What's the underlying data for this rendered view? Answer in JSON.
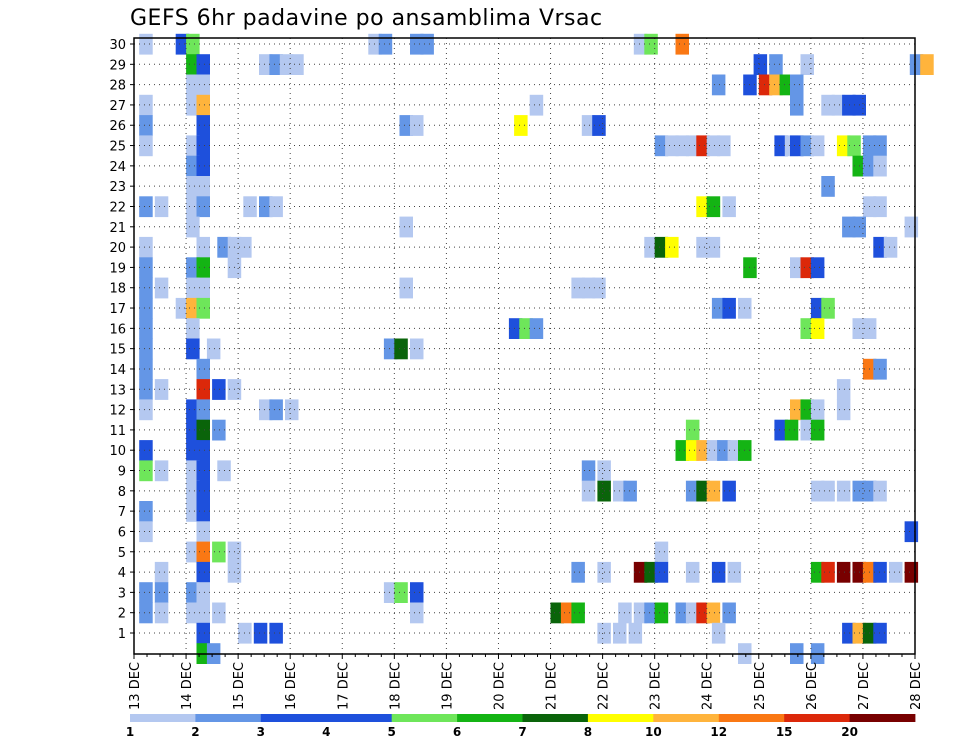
{
  "chart_data": {
    "type": "heatmap",
    "title": "GEFS 6hr padavine po ansamblima Vrsac",
    "y_categories": [
      1,
      2,
      3,
      4,
      5,
      6,
      7,
      8,
      9,
      10,
      11,
      12,
      13,
      14,
      15,
      16,
      17,
      18,
      19,
      20,
      21,
      22,
      23,
      24,
      25,
      26,
      27,
      28,
      29,
      30
    ],
    "x_labels": [
      "13 DEC",
      "14 DEC",
      "15 DEC",
      "16 DEC",
      "17 DEC",
      "18 DEC",
      "19 DEC",
      "20 DEC",
      "21 DEC",
      "22 DEC",
      "23 DEC",
      "24 DEC",
      "25 DEC",
      "26 DEC",
      "27 DEC",
      "28 DEC"
    ],
    "x_unit": "6-hourly steps (4 per day)",
    "legend": {
      "labels": [
        "1",
        "2",
        "3",
        "4",
        "5",
        "6",
        "7",
        "8",
        "10",
        "12",
        "15",
        "20"
      ],
      "colors": [
        "#b4c8f0",
        "#6496e6",
        "#1e50dc",
        "#1e50dc",
        "#6ee65a",
        "#14b414",
        "#0a640a",
        "#ffff00",
        "#ffb43c",
        "#fa7814",
        "#dc280a",
        "#780000"
      ]
    },
    "colors": {
      "c1": "#b4c8f0",
      "c2": "#6496e6",
      "c3": "#1e50dc",
      "c5": "#6ee65a",
      "c6": "#14b414",
      "c7": "#0a640a",
      "c8": "#ffff00",
      "c10": "#ffb43c",
      "c12": "#fa7814",
      "c15": "#dc280a",
      "c20": "#780000"
    },
    "cells": [
      [
        30,
        0.1,
        1
      ],
      [
        30,
        0.8,
        3
      ],
      [
        30,
        1.0,
        5
      ],
      [
        30,
        4.5,
        1
      ],
      [
        30,
        4.7,
        2
      ],
      [
        30,
        5.3,
        2
      ],
      [
        30,
        5.5,
        2
      ],
      [
        30,
        9.6,
        1
      ],
      [
        30,
        9.8,
        5
      ],
      [
        30,
        10.4,
        12
      ],
      [
        29,
        1.0,
        6
      ],
      [
        29,
        1.2,
        3
      ],
      [
        29,
        2.4,
        1
      ],
      [
        29,
        2.6,
        2
      ],
      [
        29,
        2.8,
        1
      ],
      [
        29,
        3.0,
        1
      ],
      [
        29,
        11.9,
        3
      ],
      [
        29,
        12.2,
        2
      ],
      [
        29,
        12.8,
        1
      ],
      [
        29,
        14.9,
        2
      ],
      [
        29,
        15.1,
        10
      ],
      [
        28,
        1.0,
        1
      ],
      [
        28,
        1.2,
        1
      ],
      [
        28,
        11.1,
        2
      ],
      [
        28,
        11.7,
        3
      ],
      [
        28,
        12.0,
        15
      ],
      [
        28,
        12.2,
        10
      ],
      [
        28,
        12.4,
        6
      ],
      [
        28,
        12.6,
        2
      ],
      [
        27,
        0.1,
        1
      ],
      [
        27,
        1.0,
        1
      ],
      [
        27,
        1.2,
        10
      ],
      [
        27,
        7.6,
        1
      ],
      [
        27,
        12.6,
        2
      ],
      [
        27,
        13.2,
        1
      ],
      [
        27,
        13.4,
        1
      ],
      [
        27,
        13.6,
        3
      ],
      [
        27,
        13.8,
        3
      ],
      [
        26,
        0.1,
        2
      ],
      [
        26,
        1.2,
        3
      ],
      [
        26,
        5.1,
        2
      ],
      [
        26,
        5.3,
        1
      ],
      [
        26,
        7.3,
        8
      ],
      [
        26,
        8.6,
        1
      ],
      [
        26,
        8.8,
        3
      ],
      [
        25,
        0.1,
        1
      ],
      [
        25,
        1.0,
        1
      ],
      [
        25,
        1.2,
        3
      ],
      [
        25,
        10.0,
        2
      ],
      [
        25,
        10.2,
        1
      ],
      [
        25,
        10.4,
        1
      ],
      [
        25,
        10.6,
        1
      ],
      [
        25,
        10.8,
        15
      ],
      [
        25,
        11.0,
        1
      ],
      [
        25,
        11.2,
        1
      ],
      [
        25,
        12.3,
        3
      ],
      [
        25,
        12.5,
        1
      ],
      [
        25,
        12.6,
        3
      ],
      [
        25,
        12.8,
        2
      ],
      [
        25,
        13.0,
        1
      ],
      [
        25,
        13.5,
        8
      ],
      [
        25,
        13.7,
        5
      ],
      [
        25,
        14.0,
        2
      ],
      [
        25,
        14.2,
        2
      ],
      [
        24,
        1.0,
        2
      ],
      [
        24,
        1.2,
        3
      ],
      [
        24,
        13.8,
        6
      ],
      [
        24,
        14.0,
        2
      ],
      [
        24,
        14.2,
        1
      ],
      [
        23,
        1.0,
        1
      ],
      [
        23,
        1.2,
        1
      ],
      [
        23,
        13.2,
        2
      ],
      [
        22,
        0.1,
        2
      ],
      [
        22,
        0.4,
        1
      ],
      [
        22,
        1.0,
        1
      ],
      [
        22,
        1.2,
        2
      ],
      [
        22,
        2.1,
        1
      ],
      [
        22,
        2.4,
        2
      ],
      [
        22,
        2.6,
        1
      ],
      [
        22,
        10.8,
        8
      ],
      [
        22,
        11.0,
        6
      ],
      [
        22,
        11.3,
        1
      ],
      [
        22,
        14.0,
        1
      ],
      [
        22,
        14.2,
        1
      ],
      [
        21,
        1.0,
        1
      ],
      [
        21,
        5.1,
        1
      ],
      [
        21,
        13.6,
        2
      ],
      [
        21,
        13.8,
        2
      ],
      [
        21,
        14.8,
        1
      ],
      [
        20,
        0.1,
        1
      ],
      [
        20,
        1.2,
        1
      ],
      [
        20,
        1.6,
        2
      ],
      [
        20,
        1.8,
        1
      ],
      [
        20,
        2.0,
        1
      ],
      [
        20,
        9.8,
        1
      ],
      [
        20,
        10.0,
        7
      ],
      [
        20,
        10.2,
        8
      ],
      [
        20,
        10.8,
        1
      ],
      [
        20,
        11.0,
        1
      ],
      [
        20,
        14.2,
        3
      ],
      [
        20,
        14.4,
        1
      ],
      [
        19,
        0.1,
        2
      ],
      [
        19,
        1.0,
        2
      ],
      [
        19,
        1.2,
        6
      ],
      [
        19,
        1.8,
        1
      ],
      [
        19,
        11.7,
        6
      ],
      [
        19,
        12.6,
        1
      ],
      [
        19,
        12.8,
        15
      ],
      [
        19,
        13.0,
        3
      ],
      [
        18,
        0.1,
        2
      ],
      [
        18,
        0.4,
        1
      ],
      [
        18,
        1.0,
        1
      ],
      [
        18,
        1.2,
        1
      ],
      [
        18,
        5.1,
        1
      ],
      [
        18,
        8.4,
        1
      ],
      [
        18,
        8.6,
        1
      ],
      [
        18,
        8.8,
        1
      ],
      [
        17,
        0.1,
        2
      ],
      [
        17,
        0.8,
        1
      ],
      [
        17,
        1.0,
        10
      ],
      [
        17,
        1.2,
        5
      ],
      [
        17,
        11.1,
        2
      ],
      [
        17,
        11.3,
        3
      ],
      [
        17,
        11.6,
        1
      ],
      [
        17,
        13.0,
        3
      ],
      [
        17,
        13.2,
        5
      ],
      [
        16,
        0.1,
        2
      ],
      [
        16,
        1.0,
        1
      ],
      [
        16,
        7.2,
        3
      ],
      [
        16,
        7.4,
        5
      ],
      [
        16,
        7.6,
        2
      ],
      [
        16,
        12.8,
        5
      ],
      [
        16,
        13.0,
        8
      ],
      [
        16,
        13.8,
        1
      ],
      [
        16,
        14.0,
        1
      ],
      [
        15,
        0.1,
        2
      ],
      [
        15,
        1.0,
        3
      ],
      [
        15,
        1.4,
        1
      ],
      [
        15,
        4.8,
        2
      ],
      [
        15,
        5.0,
        7
      ],
      [
        15,
        5.3,
        1
      ],
      [
        14,
        0.1,
        2
      ],
      [
        14,
        1.2,
        2
      ],
      [
        14,
        14.0,
        12
      ],
      [
        14,
        14.2,
        2
      ],
      [
        13,
        0.1,
        2
      ],
      [
        13,
        0.4,
        1
      ],
      [
        13,
        1.2,
        15
      ],
      [
        13,
        1.5,
        3
      ],
      [
        13,
        1.8,
        1
      ],
      [
        13,
        13.5,
        1
      ],
      [
        12,
        0.1,
        1
      ],
      [
        12,
        1.0,
        3
      ],
      [
        12,
        1.2,
        2
      ],
      [
        12,
        2.4,
        1
      ],
      [
        12,
        2.6,
        2
      ],
      [
        12,
        2.9,
        1
      ],
      [
        12,
        12.6,
        10
      ],
      [
        12,
        12.8,
        6
      ],
      [
        12,
        13.0,
        1
      ],
      [
        12,
        13.5,
        1
      ],
      [
        11,
        1.0,
        3
      ],
      [
        11,
        1.2,
        7
      ],
      [
        11,
        1.5,
        2
      ],
      [
        11,
        10.6,
        5
      ],
      [
        11,
        12.3,
        3
      ],
      [
        11,
        12.5,
        6
      ],
      [
        11,
        12.8,
        1
      ],
      [
        11,
        13.0,
        6
      ],
      [
        10,
        0.1,
        3
      ],
      [
        10,
        1.0,
        3
      ],
      [
        10,
        1.2,
        3
      ],
      [
        10,
        10.4,
        6
      ],
      [
        10,
        10.6,
        8
      ],
      [
        10,
        10.8,
        10
      ],
      [
        10,
        11.0,
        1
      ],
      [
        10,
        11.2,
        2
      ],
      [
        10,
        11.4,
        1
      ],
      [
        10,
        11.6,
        6
      ],
      [
        9,
        0.1,
        5
      ],
      [
        9,
        0.4,
        1
      ],
      [
        9,
        1.0,
        1
      ],
      [
        9,
        1.2,
        3
      ],
      [
        9,
        1.6,
        1
      ],
      [
        9,
        8.6,
        2
      ],
      [
        9,
        8.9,
        1
      ],
      [
        8,
        1.0,
        1
      ],
      [
        8,
        1.2,
        3
      ],
      [
        8,
        8.6,
        1
      ],
      [
        8,
        8.9,
        7
      ],
      [
        8,
        9.2,
        1
      ],
      [
        8,
        9.4,
        2
      ],
      [
        8,
        10.6,
        2
      ],
      [
        8,
        10.8,
        7
      ],
      [
        8,
        11.0,
        10
      ],
      [
        8,
        11.3,
        3
      ],
      [
        8,
        13.0,
        1
      ],
      [
        8,
        13.2,
        1
      ],
      [
        8,
        13.5,
        1
      ],
      [
        8,
        13.8,
        2
      ],
      [
        8,
        14.0,
        2
      ],
      [
        8,
        14.2,
        1
      ],
      [
        7,
        0.1,
        2
      ],
      [
        7,
        1.0,
        1
      ],
      [
        7,
        1.2,
        3
      ],
      [
        6,
        0.1,
        1
      ],
      [
        6,
        1.2,
        1
      ],
      [
        6,
        14.8,
        3
      ],
      [
        5,
        1.0,
        1
      ],
      [
        5,
        1.2,
        12
      ],
      [
        5,
        1.5,
        5
      ],
      [
        5,
        1.8,
        1
      ],
      [
        5,
        10.0,
        1
      ],
      [
        4,
        0.4,
        1
      ],
      [
        4,
        1.2,
        3
      ],
      [
        4,
        1.8,
        1
      ],
      [
        4,
        8.4,
        2
      ],
      [
        4,
        8.9,
        1
      ],
      [
        4,
        9.6,
        20
      ],
      [
        4,
        9.8,
        7
      ],
      [
        4,
        10.0,
        3
      ],
      [
        4,
        10.6,
        1
      ],
      [
        4,
        11.1,
        3
      ],
      [
        4,
        11.4,
        1
      ],
      [
        4,
        13.0,
        6
      ],
      [
        4,
        13.2,
        15
      ],
      [
        4,
        13.5,
        20
      ],
      [
        4,
        13.8,
        20
      ],
      [
        4,
        14.0,
        12
      ],
      [
        4,
        14.2,
        3
      ],
      [
        4,
        14.5,
        1
      ],
      [
        4,
        14.8,
        20
      ],
      [
        3,
        0.1,
        2
      ],
      [
        3,
        0.4,
        2
      ],
      [
        3,
        1.0,
        2
      ],
      [
        3,
        1.2,
        1
      ],
      [
        3,
        4.8,
        1
      ],
      [
        3,
        5.0,
        5
      ],
      [
        3,
        5.3,
        3
      ],
      [
        2,
        0.1,
        2
      ],
      [
        2,
        0.4,
        1
      ],
      [
        2,
        1.0,
        1
      ],
      [
        2,
        1.2,
        1
      ],
      [
        2,
        1.5,
        1
      ],
      [
        2,
        5.3,
        1
      ],
      [
        2,
        8.0,
        7
      ],
      [
        2,
        8.2,
        12
      ],
      [
        2,
        8.4,
        6
      ],
      [
        2,
        9.3,
        1
      ],
      [
        2,
        9.6,
        1
      ],
      [
        2,
        9.8,
        2
      ],
      [
        2,
        10.0,
        6
      ],
      [
        2,
        10.4,
        2
      ],
      [
        2,
        10.6,
        1
      ],
      [
        2,
        10.8,
        15
      ],
      [
        2,
        11.0,
        10
      ],
      [
        2,
        11.3,
        2
      ],
      [
        1,
        1.2,
        3
      ],
      [
        1,
        2.0,
        1
      ],
      [
        1,
        2.3,
        3
      ],
      [
        1,
        2.6,
        3
      ],
      [
        1,
        8.9,
        1
      ],
      [
        1,
        9.2,
        1
      ],
      [
        1,
        9.5,
        1
      ],
      [
        1,
        11.1,
        1
      ],
      [
        1,
        13.6,
        3
      ],
      [
        1,
        13.8,
        10
      ],
      [
        1,
        14.0,
        7
      ],
      [
        1,
        14.2,
        3
      ],
      [
        0,
        1.2,
        6
      ],
      [
        0,
        1.4,
        2
      ],
      [
        0,
        11.6,
        1
      ],
      [
        0,
        12.6,
        2
      ],
      [
        0,
        13.0,
        2
      ]
    ]
  }
}
